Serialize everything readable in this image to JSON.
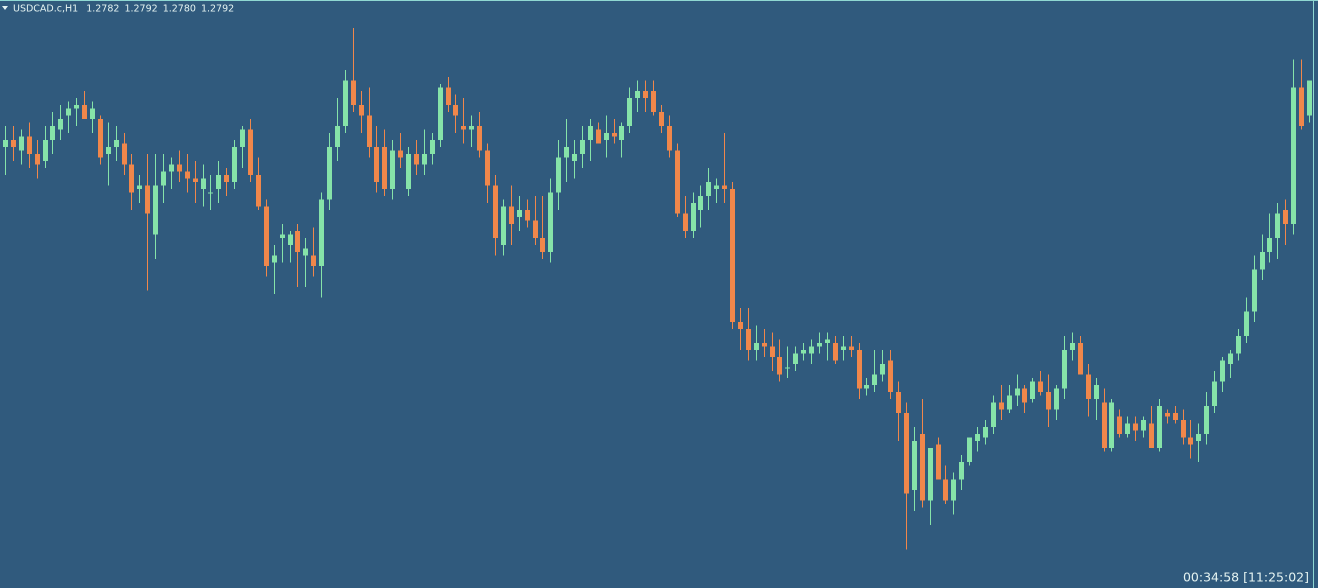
{
  "chart_data": {
    "type": "candlestick",
    "title": "USDCAD.c,H1",
    "header_ohlc": [
      {
        "value": 1.2782,
        "label": "1.2782"
      },
      {
        "value": 1.2792,
        "label": "1.2792"
      },
      {
        "value": 1.278,
        "label": "1.2780"
      },
      {
        "value": 1.2792,
        "label": "1.2792"
      }
    ],
    "timer": "00:34:58 [11:25:02]",
    "up_color": "#86e3a9",
    "down_color": "#f0874b",
    "ylim": [
      1.2647,
      1.2815
    ],
    "open": [
      1.2773,
      1.2775,
      1.2772,
      1.2776,
      1.2771,
      1.2769,
      1.2775,
      1.2778,
      1.2782,
      1.2784,
      1.2785,
      1.2781,
      1.2781,
      1.2771,
      1.2773,
      1.2774,
      1.2768,
      1.2761,
      1.2762,
      1.2748,
      1.2762,
      1.2766,
      1.2768,
      1.2766,
      1.2764,
      1.2761,
      1.276,
      1.2761,
      1.2765,
      1.2763,
      1.2773,
      1.2778,
      1.2765,
      1.2756,
      1.274,
      1.2747,
      1.2745,
      1.2749,
      1.2742,
      1.2742,
      1.2739,
      1.2758,
      1.2773,
      1.2779,
      1.2792,
      1.2785,
      1.2782,
      1.2773,
      1.2773,
      1.2761,
      1.2772,
      1.2761,
      1.2771,
      1.2768,
      1.2771,
      1.2775,
      1.279,
      1.2785,
      1.2779,
      1.2778,
      1.2779,
      1.2772,
      1.2762,
      1.2745,
      1.2756,
      1.2753,
      1.2755,
      1.2752,
      1.2747,
      1.2743,
      1.276,
      1.277,
      1.2769,
      1.2771,
      1.2775,
      1.2778,
      1.2775,
      1.2777,
      1.2775,
      1.2779,
      1.2787,
      1.2789,
      1.2789,
      1.2783,
      1.2779,
      1.2772,
      1.2754,
      1.2749,
      1.2755,
      1.2759,
      1.2761,
      1.2762,
      1.2761,
      1.2723,
      1.2721,
      1.2715,
      1.2717,
      1.2716,
      1.2713,
      1.271,
      1.2711,
      1.2714,
      1.2714,
      1.2716,
      1.2717,
      1.2717,
      1.2715,
      1.2716,
      1.2715,
      1.2704,
      1.2705,
      1.2708,
      1.2712,
      1.2703,
      1.2697,
      1.2675,
      1.2691,
      1.2672,
      1.2688,
      1.2678,
      1.2672,
      1.2678,
      1.2683,
      1.2689,
      1.269,
      1.2693,
      1.27,
      1.2698,
      1.2702,
      1.2704,
      1.2701,
      1.2706,
      1.2703,
      1.2698,
      1.2704,
      1.2715,
      1.2717,
      1.2708,
      1.2701,
      1.27,
      1.2687,
      1.2696,
      1.2691,
      1.2694,
      1.2692,
      1.2694,
      1.2687,
      1.2697,
      1.2697,
      1.2695,
      1.269,
      1.2689,
      1.2691,
      1.2699,
      1.2706,
      1.2711,
      1.2714,
      1.2719,
      1.2726,
      1.2738,
      1.2743,
      1.2747,
      1.2755,
      1.2751,
      1.279,
      1.2782
    ],
    "high": [
      1.2779,
      1.2779,
      1.2778,
      1.278,
      1.2775,
      1.2779,
      1.2783,
      1.2785,
      1.2786,
      1.2787,
      1.2789,
      1.2786,
      1.2782,
      1.278,
      1.2779,
      1.2777,
      1.2771,
      1.2765,
      1.2771,
      1.2771,
      1.2771,
      1.277,
      1.2772,
      1.2771,
      1.2769,
      1.2768,
      1.2765,
      1.2769,
      1.2767,
      1.2775,
      1.2779,
      1.2781,
      1.277,
      1.2758,
      1.2745,
      1.2751,
      1.2749,
      1.2751,
      1.2747,
      1.275,
      1.276,
      1.2777,
      1.2787,
      1.2795,
      1.2807,
      1.2789,
      1.279,
      1.2779,
      1.2778,
      1.2775,
      1.2777,
      1.2773,
      1.2775,
      1.2778,
      1.2777,
      1.2791,
      1.2793,
      1.2788,
      1.2787,
      1.2782,
      1.2783,
      1.2774,
      1.2765,
      1.2758,
      1.2762,
      1.2759,
      1.2758,
      1.2759,
      1.2759,
      1.2764,
      1.2775,
      1.2781,
      1.2775,
      1.2779,
      1.2781,
      1.278,
      1.2782,
      1.2781,
      1.278,
      1.279,
      1.2792,
      1.2792,
      1.2792,
      1.2785,
      1.2782,
      1.2774,
      1.2759,
      1.276,
      1.2762,
      1.2767,
      1.2764,
      1.2777,
      1.2763,
      1.2727,
      1.2727,
      1.2722,
      1.2721,
      1.272,
      1.2718,
      1.2716,
      1.2716,
      1.2717,
      1.2718,
      1.272,
      1.272,
      1.2719,
      1.2719,
      1.2719,
      1.2717,
      1.2707,
      1.2715,
      1.2715,
      1.2715,
      1.2706,
      1.27,
      1.2693,
      1.2701,
      1.2687,
      1.269,
      1.2682,
      1.268,
      1.2685,
      1.269,
      1.2693,
      1.2695,
      1.2702,
      1.2705,
      1.2705,
      1.2708,
      1.2705,
      1.2707,
      1.2709,
      1.2708,
      1.2705,
      1.2719,
      1.272,
      1.2719,
      1.2711,
      1.2707,
      1.2704,
      1.2701,
      1.2698,
      1.2696,
      1.2696,
      1.2696,
      1.2699,
      1.2701,
      1.2698,
      1.2699,
      1.2698,
      1.2695,
      1.2694,
      1.2703,
      1.2709,
      1.2713,
      1.2715,
      1.2721,
      1.273,
      1.2742,
      1.2748,
      1.2754,
      1.2757,
      1.2758,
      1.2798,
      1.2798,
      1.2792
    ],
    "low": [
      1.2765,
      1.2769,
      1.2768,
      1.2767,
      1.2764,
      1.2767,
      1.2771,
      1.2775,
      1.2777,
      1.2779,
      1.2781,
      1.2777,
      1.2768,
      1.2762,
      1.2769,
      1.2765,
      1.2755,
      1.2757,
      1.2732,
      1.2741,
      1.2757,
      1.2761,
      1.2763,
      1.276,
      1.2757,
      1.2756,
      1.2755,
      1.2757,
      1.2759,
      1.2761,
      1.2767,
      1.2763,
      1.2755,
      1.2736,
      1.2731,
      1.274,
      1.274,
      1.2733,
      1.2733,
      1.2736,
      1.273,
      1.2755,
      1.2769,
      1.2777,
      1.2783,
      1.2777,
      1.277,
      1.276,
      1.2759,
      1.2758,
      1.2767,
      1.2759,
      1.2765,
      1.2765,
      1.2768,
      1.2773,
      1.2783,
      1.2777,
      1.2774,
      1.2773,
      1.277,
      1.2757,
      1.2742,
      1.2742,
      1.2745,
      1.2749,
      1.275,
      1.2745,
      1.2741,
      1.274,
      1.2755,
      1.2763,
      1.2764,
      1.2767,
      1.2769,
      1.2774,
      1.277,
      1.2774,
      1.277,
      1.2777,
      1.2783,
      1.2783,
      1.2782,
      1.2777,
      1.277,
      1.2753,
      1.2747,
      1.2747,
      1.275,
      1.2755,
      1.2757,
      1.2757,
      1.2721,
      1.2715,
      1.2712,
      1.2712,
      1.2713,
      1.2709,
      1.2706,
      1.2707,
      1.2709,
      1.2712,
      1.2711,
      1.2714,
      1.2712,
      1.2711,
      1.2712,
      1.2713,
      1.2701,
      1.2702,
      1.2703,
      1.2706,
      1.2701,
      1.2689,
      1.2658,
      1.2669,
      1.267,
      1.2665,
      1.2678,
      1.2671,
      1.2668,
      1.2675,
      1.2682,
      1.2686,
      1.2688,
      1.2691,
      1.2695,
      1.2697,
      1.2699,
      1.2697,
      1.27,
      1.2702,
      1.2693,
      1.2695,
      1.2701,
      1.2712,
      1.2708,
      1.2696,
      1.2695,
      1.2686,
      1.2686,
      1.269,
      1.269,
      1.2689,
      1.269,
      1.2687,
      1.2686,
      1.2694,
      1.2694,
      1.2688,
      1.2684,
      1.2683,
      1.2688,
      1.2697,
      1.2703,
      1.2707,
      1.2712,
      1.2717,
      1.2723,
      1.2735,
      1.274,
      1.2741,
      1.2745,
      1.2748,
      1.2778,
      1.278
    ],
    "close": [
      1.2775,
      1.2773,
      1.2776,
      1.2771,
      1.2768,
      1.2775,
      1.2779,
      1.2781,
      1.2784,
      1.2785,
      1.2781,
      1.2784,
      1.277,
      1.2773,
      1.2775,
      1.2768,
      1.276,
      1.2762,
      1.2754,
      1.2762,
      1.2766,
      1.2768,
      1.2766,
      1.2764,
      1.2763,
      1.2764,
      1.276,
      1.2765,
      1.2763,
      1.2773,
      1.2778,
      1.2765,
      1.2756,
      1.2739,
      1.2742,
      1.2748,
      1.2748,
      1.2743,
      1.2744,
      1.2739,
      1.2758,
      1.2773,
      1.2779,
      1.2792,
      1.2785,
      1.2782,
      1.2773,
      1.2763,
      1.2761,
      1.2772,
      1.277,
      1.2771,
      1.2768,
      1.2771,
      1.2775,
      1.279,
      1.2785,
      1.2782,
      1.2778,
      1.2779,
      1.2772,
      1.2762,
      1.2747,
      1.2756,
      1.2751,
      1.2755,
      1.2752,
      1.2747,
      1.2743,
      1.276,
      1.277,
      1.2773,
      1.2771,
      1.2775,
      1.2779,
      1.2774,
      1.2777,
      1.2776,
      1.2779,
      1.2787,
      1.2789,
      1.2787,
      1.2783,
      1.2779,
      1.2772,
      1.2754,
      1.2749,
      1.2757,
      1.2759,
      1.2763,
      1.2762,
      1.2761,
      1.2723,
      1.2721,
      1.2715,
      1.2717,
      1.2716,
      1.2713,
      1.2708,
      1.271,
      1.2714,
      1.2715,
      1.2716,
      1.2717,
      1.2718,
      1.2712,
      1.2716,
      1.2715,
      1.2704,
      1.2705,
      1.2708,
      1.2711,
      1.2703,
      1.2697,
      1.2674,
      1.2689,
      1.2672,
      1.2687,
      1.2678,
      1.2672,
      1.2678,
      1.2683,
      1.269,
      1.2691,
      1.2693,
      1.27,
      1.2698,
      1.2702,
      1.2704,
      1.27,
      1.2706,
      1.2703,
      1.2698,
      1.2704,
      1.2715,
      1.2717,
      1.2708,
      1.2701,
      1.2705,
      1.2687,
      1.27,
      1.2691,
      1.2694,
      1.2692,
      1.2695,
      1.2687,
      1.2699,
      1.2696,
      1.2695,
      1.269,
      1.2688,
      1.2691,
      1.2699,
      1.2706,
      1.2712,
      1.2714,
      1.2719,
      1.2726,
      1.2738,
      1.2743,
      1.2747,
      1.2754,
      1.2751,
      1.279,
      1.2779,
      1.2792
    ]
  }
}
